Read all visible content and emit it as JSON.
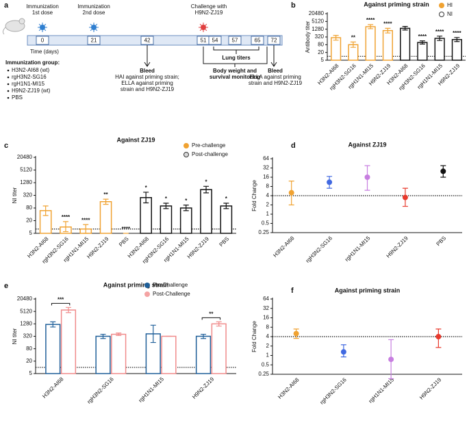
{
  "timeline": {
    "panel": "a",
    "days": [
      0,
      21,
      42,
      51,
      54,
      57,
      65,
      72
    ],
    "axis_label": "Time (days)",
    "dose1": [
      "Immunization",
      "1st dose"
    ],
    "dose2": [
      "Immunization",
      "2nd dose"
    ],
    "challenge": [
      "Challenge with",
      "H9N2-ZJ19"
    ],
    "bleed1": {
      "title": "Bleed",
      "lines": [
        "HAI against priming strain;",
        "ELLA against priming",
        "strain and H9N2-ZJ19"
      ]
    },
    "lung": "Lung titers",
    "monitor": [
      "Body weight and",
      "survival monitoring"
    ],
    "bleed2": {
      "title": "Bleed",
      "lines": [
        "ELLA against priming",
        "strain and H9N2-ZJ19"
      ]
    },
    "group_title": "Immunization group:",
    "groups": [
      "H3N2-AI68 (wt)",
      "rgH3N2-SG16",
      "rgH1N1-MI15",
      "H9N2-ZJ19 (wt)",
      "PBS"
    ]
  },
  "chart_data": [
    {
      "panel": "b",
      "type": "bar",
      "title": "Against priming strain",
      "ylabel": "Antibody titer",
      "log_scale": true,
      "legend": "upper right",
      "categories": [
        "H3N2-AI68",
        "rgH3N2-SG16",
        "rgH1N1-MI15",
        "H9N2-ZJ19",
        "H3N2-AI68",
        "rgH3N2-SG16",
        "rgH1N1-MI15",
        "H9N2-ZJ19"
      ],
      "ylim": [
        5,
        20480
      ],
      "yticks": [
        5,
        20,
        80,
        320,
        1280,
        5120,
        20480
      ],
      "reference_line": 10,
      "series": [
        {
          "name": "HI",
          "color": "#f0a231",
          "marker_color": "#f0a231",
          "values": [
            280,
            80,
            2000,
            1000,
            null,
            null,
            null,
            null
          ],
          "lower": [
            180,
            50,
            1400,
            650,
            null,
            null,
            null,
            null
          ],
          "upper": [
            420,
            130,
            2900,
            1500,
            null,
            null,
            null,
            null
          ],
          "annotations": [
            null,
            "**",
            "****",
            "****",
            null,
            null,
            null,
            null
          ]
        },
        {
          "name": "NI",
          "color": "#111111",
          "marker_color": "#ffffff",
          "values": [
            null,
            null,
            null,
            null,
            1500,
            120,
            250,
            200
          ],
          "lower": [
            null,
            null,
            null,
            null,
            1100,
            90,
            170,
            140
          ],
          "upper": [
            null,
            null,
            null,
            null,
            2100,
            160,
            370,
            290
          ],
          "annotations": [
            null,
            null,
            null,
            null,
            null,
            "****",
            "****",
            "****"
          ]
        }
      ]
    },
    {
      "panel": "c",
      "type": "bar",
      "title": "Against ZJ19",
      "ylabel": "NI titer",
      "log_scale": true,
      "legend": "upper right",
      "categories": [
        "H3N2-AI68",
        "rgH3N2-SG16",
        "rgH1N1-MI15",
        "H9N2-ZJ19",
        "PBS",
        "H3N2-AI68",
        "rgH3N2-SG16",
        "rgH1N1-MI15",
        "H9N2-ZJ19",
        "PBS"
      ],
      "ylim": [
        5,
        20480
      ],
      "yticks": [
        5,
        20,
        80,
        320,
        1280,
        5120,
        20480
      ],
      "reference_line": 8,
      "series": [
        {
          "name": "Pre-challenge",
          "color": "#f0a231",
          "marker_color": "#f0a231",
          "values": [
            60,
            10,
            8,
            160,
            5,
            null,
            null,
            null,
            null,
            null
          ],
          "lower": [
            35,
            6,
            5,
            120,
            5,
            null,
            null,
            null,
            null,
            null
          ],
          "upper": [
            100,
            18,
            13,
            210,
            5,
            null,
            null,
            null,
            null,
            null
          ],
          "annotations": [
            null,
            "****",
            "****",
            "**",
            "****",
            null,
            null,
            null,
            null,
            null
          ]
        },
        {
          "name": "Post-challenge",
          "color": "#111111",
          "marker_color": "#d9d9d9",
          "values": [
            null,
            null,
            null,
            null,
            null,
            250,
            100,
            80,
            600,
            100
          ],
          "lower": [
            null,
            null,
            null,
            null,
            null,
            140,
            75,
            60,
            420,
            75
          ],
          "upper": [
            null,
            null,
            null,
            null,
            null,
            450,
            135,
            110,
            860,
            135
          ],
          "annotations": [
            null,
            null,
            null,
            null,
            null,
            "*",
            "*",
            "*",
            "*",
            "*"
          ]
        }
      ]
    },
    {
      "panel": "d",
      "type": "scatter",
      "title": "Against ZJ19",
      "ylabel": "Fold Change",
      "log_scale": true,
      "categories": [
        "H3N2-AI68",
        "rgH3N2-SG16",
        "rgH1N1-MI15",
        "H9N2-ZJ19",
        "PBS"
      ],
      "values": [
        5,
        11,
        16,
        3.5,
        25
      ],
      "lower": [
        2,
        7,
        6,
        1.8,
        16
      ],
      "upper": [
        12,
        17,
        38,
        7,
        38
      ],
      "colors": [
        "#f0a231",
        "#4169e1",
        "#c77ee0",
        "#e8392c",
        "#111111"
      ],
      "ylim": [
        0.25,
        64
      ],
      "yticks": [
        0.25,
        0.5,
        1,
        2,
        4,
        8,
        16,
        32,
        64
      ],
      "reference_line": 4
    },
    {
      "panel": "e",
      "type": "bar",
      "title": "Against priming strain",
      "ylabel": "NI titer",
      "log_scale": true,
      "legend": "upper right",
      "categories": [
        "H3N2-AI68",
        "rgH3N2-SG16",
        "rgH1N1-MI15",
        "H9N2-ZJ19"
      ],
      "ylim": [
        5,
        20480
      ],
      "yticks": [
        5,
        20,
        80,
        320,
        1280,
        5120,
        20480
      ],
      "reference_line": 10,
      "annotations": [
        "***",
        null,
        null,
        "**"
      ],
      "series": [
        {
          "name": "Pre-Challenge",
          "color": "#1f5f99",
          "marker_color": "#1f5f99",
          "values": [
            1200,
            320,
            420,
            320
          ],
          "lower": [
            900,
            250,
            160,
            250
          ],
          "upper": [
            1600,
            400,
            1100,
            400
          ]
        },
        {
          "name": "Post-Challenge",
          "color": "#f08a8a",
          "marker_color": "#f4a3a3",
          "values": [
            6000,
            400,
            320,
            1280
          ],
          "lower": [
            4500,
            350,
            320,
            1000
          ],
          "upper": [
            8000,
            460,
            320,
            1600
          ]
        }
      ]
    },
    {
      "panel": "f",
      "type": "scatter",
      "title": "Against priming strain",
      "ylabel": "Fold Change",
      "log_scale": true,
      "categories": [
        "H3N2-AI68",
        "rgH3N2-SG16",
        "rgH1N1-MI15",
        "H9N2-ZJ19"
      ],
      "values": [
        5,
        1.3,
        0.75,
        4
      ],
      "lower": [
        3.5,
        0.9,
        0.18,
        1.8
      ],
      "upper": [
        7,
        2.2,
        3.2,
        7
      ],
      "colors": [
        "#f0a231",
        "#4169e1",
        "#c77ee0",
        "#e8392c"
      ],
      "ylim": [
        0.25,
        64
      ],
      "yticks": [
        0.25,
        0.5,
        1,
        2,
        4,
        8,
        16,
        32,
        64
      ],
      "reference_line": 4
    }
  ]
}
